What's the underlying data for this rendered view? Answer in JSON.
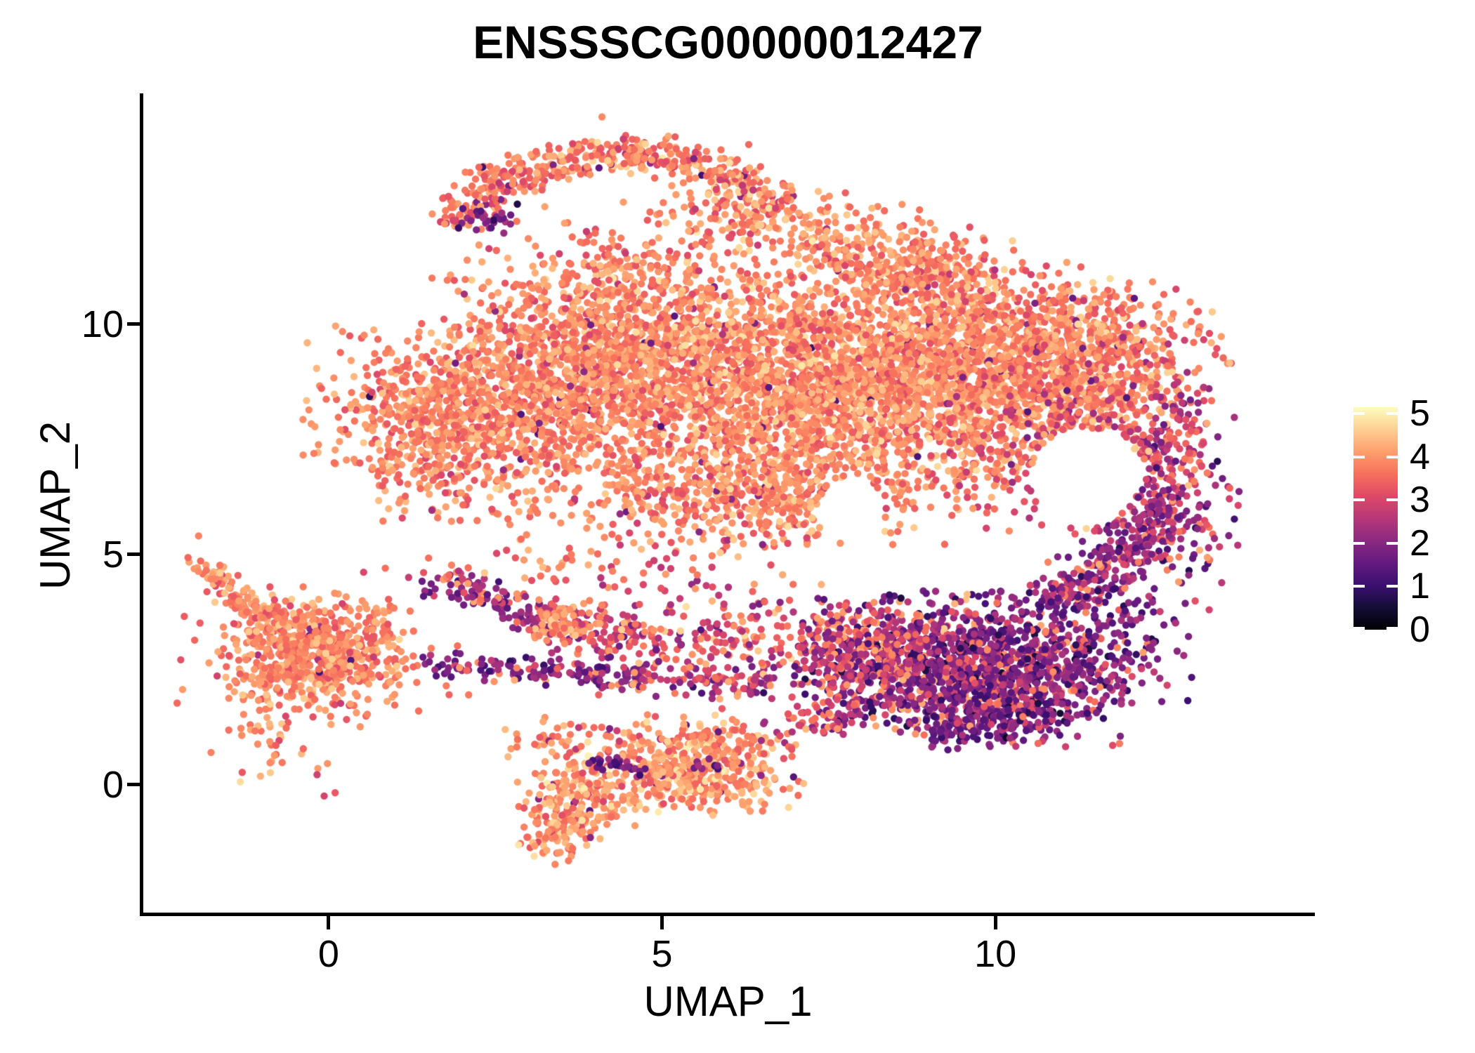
{
  "title": "ENSSSCG00000012427",
  "chart_data": {
    "type": "scatter",
    "title": "ENSSSCG00000012427",
    "xlabel": "UMAP_1",
    "ylabel": "UMAP_2",
    "x_ticks": [
      0,
      5,
      10
    ],
    "y_ticks": [
      0,
      5,
      10
    ],
    "x_range": [
      -2.79,
      14.77
    ],
    "y_range": [
      -2.81,
      14.98
    ],
    "grid": false,
    "point_radius_px": 5.2,
    "background": "#ffffff",
    "colorbar": {
      "position": "right",
      "ticks": [
        0,
        1,
        2,
        3,
        4,
        5
      ],
      "min": 0,
      "max": 5.15,
      "colormap": "magma",
      "stops": [
        [
          0.0,
          "#000004"
        ],
        [
          0.1,
          "#140e36"
        ],
        [
          0.2,
          "#3b0f70"
        ],
        [
          0.3,
          "#641a80"
        ],
        [
          0.4,
          "#8c2981"
        ],
        [
          0.5,
          "#b73779"
        ],
        [
          0.6,
          "#de4968"
        ],
        [
          0.7,
          "#f7705c"
        ],
        [
          0.8,
          "#fe9f6d"
        ],
        [
          0.9,
          "#fecf92"
        ],
        [
          1.0,
          "#fcfdbf"
        ]
      ]
    },
    "seed": 42,
    "holes": [
      {
        "cx": 11.35,
        "cy": 6.7,
        "rx": 0.82,
        "ry": 1.05
      },
      {
        "cx": 7.85,
        "cy": 5.95,
        "rx": 0.5,
        "ry": 0.75
      }
    ],
    "clusters": [
      {
        "name": "main-left-wedge",
        "kind": "gauss",
        "cx": 1.9,
        "cy": 7.9,
        "sx": 1.0,
        "sy": 0.95,
        "n": 900,
        "e": [
          3.85,
          0.42,
          2.0,
          5.0
        ],
        "out": [
          0.012,
          1.9,
          0.5
        ]
      },
      {
        "name": "main-left-mid",
        "kind": "gauss",
        "cx": 4.2,
        "cy": 9.2,
        "sx": 1.1,
        "sy": 1.1,
        "n": 1400,
        "e": [
          3.85,
          0.42,
          2.0,
          5.0
        ],
        "out": [
          0.012,
          1.9,
          0.5
        ]
      },
      {
        "name": "main-central",
        "kind": "gauss",
        "cx": 6.9,
        "cy": 8.7,
        "sx": 1.2,
        "sy": 1.15,
        "n": 1600,
        "e": [
          3.95,
          0.45,
          2.2,
          5.0
        ],
        "out": [
          0.01,
          1.9,
          0.5
        ]
      },
      {
        "name": "main-right",
        "kind": "gauss",
        "cx": 9.4,
        "cy": 8.9,
        "sx": 1.1,
        "sy": 1.05,
        "n": 1400,
        "e": [
          3.9,
          0.45,
          2.2,
          5.0
        ],
        "out": [
          0.015,
          2.0,
          0.5
        ]
      },
      {
        "name": "main-right-lobe",
        "kind": "gauss",
        "cx": 11.5,
        "cy": 9.3,
        "sx": 0.9,
        "sy": 0.8,
        "rot": -20,
        "n": 650,
        "e": [
          3.8,
          0.45,
          2.0,
          5.0
        ],
        "out": [
          0.03,
          2.2,
          0.5
        ]
      },
      {
        "name": "main-bottom-band",
        "kind": "gauss",
        "cx": 6.3,
        "cy": 6.3,
        "sx": 1.7,
        "sy": 0.55,
        "n": 680,
        "e": [
          3.8,
          0.45,
          2.2,
          5.0
        ],
        "out": [
          0.02,
          2.2,
          0.5
        ]
      },
      {
        "name": "main-top-arc",
        "kind": "arc",
        "cx": 4.4,
        "cy": 10.75,
        "r": 2.95,
        "th": 0.22,
        "a0": 38,
        "a1": 152,
        "n": 460,
        "e": [
          3.75,
          0.5,
          2.0,
          4.9
        ],
        "out": [
          0.03,
          2.0,
          0.5
        ]
      },
      {
        "name": "main-under-arc",
        "kind": "gauss",
        "cx": 4.7,
        "cy": 11.15,
        "sx": 1.3,
        "sy": 0.75,
        "n": 190,
        "e": [
          3.8,
          0.5,
          2.2,
          5.0
        ],
        "out": [
          0.02,
          2.0,
          0.4
        ]
      },
      {
        "name": "main-top-right-shelf",
        "kind": "gauss",
        "cx": 8.6,
        "cy": 11.35,
        "sx": 1.15,
        "sy": 0.5,
        "rot": -22,
        "n": 430,
        "e": [
          3.85,
          0.45,
          2.2,
          5.0
        ],
        "out": [
          0.02,
          2.2,
          0.5
        ]
      },
      {
        "name": "main-right-mid",
        "kind": "gauss",
        "cx": 10.9,
        "cy": 7.4,
        "sx": 0.8,
        "sy": 0.85,
        "n": 340,
        "e": [
          3.5,
          0.6,
          1.8,
          4.8
        ],
        "out": [
          0.07,
          2.2,
          0.5
        ]
      },
      {
        "name": "main-right-edge",
        "kind": "gauss",
        "cx": 12.5,
        "cy": 6.9,
        "sx": 0.5,
        "sy": 0.95,
        "n": 250,
        "e": [
          2.9,
          0.8,
          0.8,
          4.6
        ]
      },
      {
        "name": "arm-tip-purple",
        "kind": "gauss",
        "cx": 2.35,
        "cy": 12.25,
        "sx": 0.22,
        "sy": 0.16,
        "n": 26,
        "e": [
          1.7,
          0.5,
          0.6,
          2.8
        ]
      },
      {
        "name": "arc-right-thick",
        "kind": "gauss",
        "cx": 6.3,
        "cy": 12.35,
        "sx": 0.6,
        "sy": 0.35,
        "n": 140,
        "e": [
          3.8,
          0.5,
          2.4,
          5.0
        ]
      },
      {
        "name": "bridge-diag-streak",
        "kind": "band",
        "x0": 1.7,
        "y0": 4.45,
        "x1": 3.35,
        "y1": 3.5,
        "th": 0.2,
        "n": 130,
        "e": [
          2.2,
          0.6,
          0.8,
          3.6
        ],
        "out": [
          0.22,
          3.9,
          0.3
        ]
      },
      {
        "name": "bridge-streak2",
        "kind": "band",
        "x0": 3.35,
        "y0": 3.5,
        "x1": 5.0,
        "y1": 3.05,
        "th": 0.28,
        "n": 95,
        "e": [
          3.0,
          0.8,
          1.0,
          4.4
        ]
      },
      {
        "name": "bridge-chain",
        "kind": "band",
        "x0": 1.5,
        "y0": 2.6,
        "x1": 4.7,
        "y1": 2.35,
        "th": 0.15,
        "n": 135,
        "e": [
          1.9,
          0.5,
          0.6,
          3.2
        ],
        "out": [
          0.15,
          3.8,
          0.3
        ]
      },
      {
        "name": "bridge-chain2",
        "kind": "band",
        "x0": 4.7,
        "y0": 2.35,
        "x1": 6.6,
        "y1": 2.1,
        "th": 0.2,
        "n": 70,
        "e": [
          2.6,
          0.8,
          0.9,
          4.2
        ]
      },
      {
        "name": "bridge-orange-blob",
        "kind": "gauss",
        "cx": 3.5,
        "cy": 3.5,
        "sx": 0.3,
        "sy": 0.22,
        "n": 85,
        "e": [
          4.0,
          0.35,
          3.0,
          4.9
        ]
      },
      {
        "name": "bridge-mid-scatter",
        "kind": "gauss",
        "cx": 5.9,
        "cy": 3.1,
        "sx": 1.0,
        "sy": 0.6,
        "n": 190,
        "e": [
          3.3,
          0.8,
          1.2,
          4.8
        ],
        "out": [
          0.1,
          2.0,
          0.4
        ]
      },
      {
        "name": "bridge-under-cloud",
        "kind": "gauss",
        "cx": 4.2,
        "cy": 4.7,
        "sx": 1.3,
        "sy": 0.35,
        "n": 70,
        "e": [
          3.6,
          0.6,
          1.8,
          4.6
        ]
      },
      {
        "name": "purple-core",
        "kind": "gauss",
        "cx": 9.5,
        "cy": 2.5,
        "sx": 1.1,
        "sy": 0.75,
        "n": 1250,
        "e": [
          1.9,
          0.7,
          0.15,
          3.6
        ],
        "out": [
          0.16,
          3.9,
          0.35
        ]
      },
      {
        "name": "purple-left-wing",
        "kind": "gauss",
        "cx": 7.9,
        "cy": 2.9,
        "sx": 0.65,
        "sy": 0.5,
        "n": 270,
        "e": [
          2.6,
          0.7,
          0.8,
          4.0
        ],
        "out": [
          0.25,
          3.9,
          0.3
        ]
      },
      {
        "name": "purple-ne-band",
        "kind": "band",
        "x0": 10.9,
        "y0": 3.9,
        "x1": 12.5,
        "y1": 5.9,
        "th": 0.3,
        "n": 250,
        "e": [
          2.1,
          0.6,
          0.5,
          3.6
        ],
        "out": [
          0.13,
          3.8,
          0.3
        ]
      },
      {
        "name": "purple-right-dense",
        "kind": "gauss",
        "cx": 11.2,
        "cy": 3.0,
        "sx": 0.8,
        "sy": 0.75,
        "n": 300,
        "e": [
          1.8,
          0.6,
          0.2,
          3.2
        ],
        "out": [
          0.08,
          3.7,
          0.3
        ]
      },
      {
        "name": "purple-bottom-tail",
        "kind": "band",
        "x0": 9.0,
        "y0": 1.15,
        "x1": 10.6,
        "y1": 1.5,
        "th": 0.22,
        "n": 110,
        "e": [
          1.8,
          0.6,
          0.3,
          3.2
        ],
        "out": [
          0.1,
          3.7,
          0.3
        ]
      },
      {
        "name": "purple-right-edge",
        "kind": "gauss",
        "cx": 12.8,
        "cy": 5.6,
        "sx": 0.4,
        "sy": 0.85,
        "n": 90,
        "e": [
          2.2,
          0.7,
          0.6,
          3.8
        ],
        "out": [
          0.15,
          3.8,
          0.3
        ]
      },
      {
        "name": "left-core",
        "kind": "gauss",
        "cx": -0.2,
        "cy": 2.9,
        "sx": 0.62,
        "sy": 0.55,
        "n": 620,
        "e": [
          3.9,
          0.4,
          2.6,
          5.0
        ],
        "out": [
          0.02,
          2.2,
          0.5
        ]
      },
      {
        "name": "left-halo",
        "kind": "gauss",
        "cx": -0.1,
        "cy": 2.8,
        "sx": 0.95,
        "sy": 0.8,
        "n": 120,
        "e": [
          3.8,
          0.45,
          2.4,
          4.9
        ],
        "out": [
          0.03,
          2.4,
          0.4
        ]
      },
      {
        "name": "left-arm",
        "kind": "band",
        "x0": -1.72,
        "y0": 4.7,
        "x1": -1.3,
        "y1": 3.85,
        "th": 0.15,
        "n": 55,
        "e": [
          3.85,
          0.4,
          2.8,
          4.8
        ]
      },
      {
        "name": "left-arm2",
        "kind": "band",
        "x0": -1.3,
        "y0": 3.85,
        "x1": -0.7,
        "y1": 3.55,
        "th": 0.13,
        "n": 30,
        "e": [
          3.85,
          0.4,
          2.8,
          4.8
        ]
      },
      {
        "name": "left-arm-tip",
        "kind": "gauss",
        "cx": -1.9,
        "cy": 4.85,
        "sx": 0.12,
        "sy": 0.14,
        "n": 8,
        "e": [
          3.8,
          0.4,
          3.0,
          4.6
        ]
      },
      {
        "name": "left-bottom-tail",
        "kind": "gauss",
        "cx": -0.9,
        "cy": 0.95,
        "sx": 0.45,
        "sy": 0.6,
        "n": 55,
        "e": [
          3.8,
          0.45,
          2.6,
          4.8
        ]
      },
      {
        "name": "bottom-main",
        "kind": "gauss",
        "cx": 5.4,
        "cy": 0.3,
        "sx": 0.8,
        "sy": 0.45,
        "n": 430,
        "e": [
          4.05,
          0.45,
          2.6,
          5.0
        ],
        "out": [
          0.02,
          1.8,
          0.4
        ]
      },
      {
        "name": "bottom-left-lobe",
        "kind": "gauss",
        "cx": 3.7,
        "cy": -0.4,
        "sx": 0.45,
        "sy": 0.45,
        "n": 200,
        "e": [
          4.0,
          0.45,
          2.6,
          5.0
        ],
        "out": [
          0.03,
          1.8,
          0.4
        ]
      },
      {
        "name": "bottom-tail",
        "kind": "gauss",
        "cx": 3.45,
        "cy": -1.2,
        "sx": 0.22,
        "sy": 0.3,
        "n": 45,
        "e": [
          3.9,
          0.45,
          2.6,
          4.8
        ]
      },
      {
        "name": "bottom-top-chain",
        "kind": "band",
        "x0": 2.6,
        "y0": 1.0,
        "x1": 6.6,
        "y1": 1.05,
        "th": 0.28,
        "n": 110,
        "e": [
          3.8,
          0.5,
          2.2,
          4.8
        ],
        "out": [
          0.04,
          2.0,
          0.4
        ]
      },
      {
        "name": "bottom-purple-streak",
        "kind": "band",
        "x0": 3.95,
        "y0": 0.5,
        "x1": 4.75,
        "y1": 0.3,
        "th": 0.1,
        "n": 24,
        "e": [
          1.6,
          0.4,
          0.6,
          2.6
        ]
      },
      {
        "name": "bottom-dark-dots",
        "kind": "gauss",
        "cx": 5.75,
        "cy": 0.5,
        "sx": 0.2,
        "sy": 0.1,
        "n": 9,
        "e": [
          1.6,
          0.4,
          0.8,
          2.4
        ]
      },
      {
        "name": "bottom-link",
        "kind": "band",
        "x0": 6.6,
        "y0": 1.0,
        "x1": 7.9,
        "y1": 1.7,
        "th": 0.25,
        "n": 65,
        "e": [
          2.9,
          0.8,
          1.2,
          4.4
        ]
      },
      {
        "name": "stray-points",
        "kind": "points",
        "pts": [
          [
            4.1,
            14.5,
            3.9
          ],
          [
            6.3,
            13.9,
            3.5
          ],
          [
            2.05,
            13.3,
            3.8
          ],
          [
            1.55,
            11.0,
            3.7
          ],
          [
            8.6,
            12.6,
            4.0
          ],
          [
            13.3,
            6.5,
            2.4
          ],
          [
            12.9,
            4.55,
            2.1
          ],
          [
            6.95,
            1.9,
            3.2
          ],
          [
            5.9,
            1.65,
            3.3
          ],
          [
            2.1,
            1.95,
            3.7
          ],
          [
            1.35,
            1.6,
            3.6
          ],
          [
            4.05,
            1.95,
            3.4
          ],
          [
            -1.95,
            5.4,
            3.8
          ],
          [
            0.85,
            4.7,
            3.6
          ],
          [
            1.2,
            4.5,
            2.8
          ]
        ]
      }
    ]
  }
}
